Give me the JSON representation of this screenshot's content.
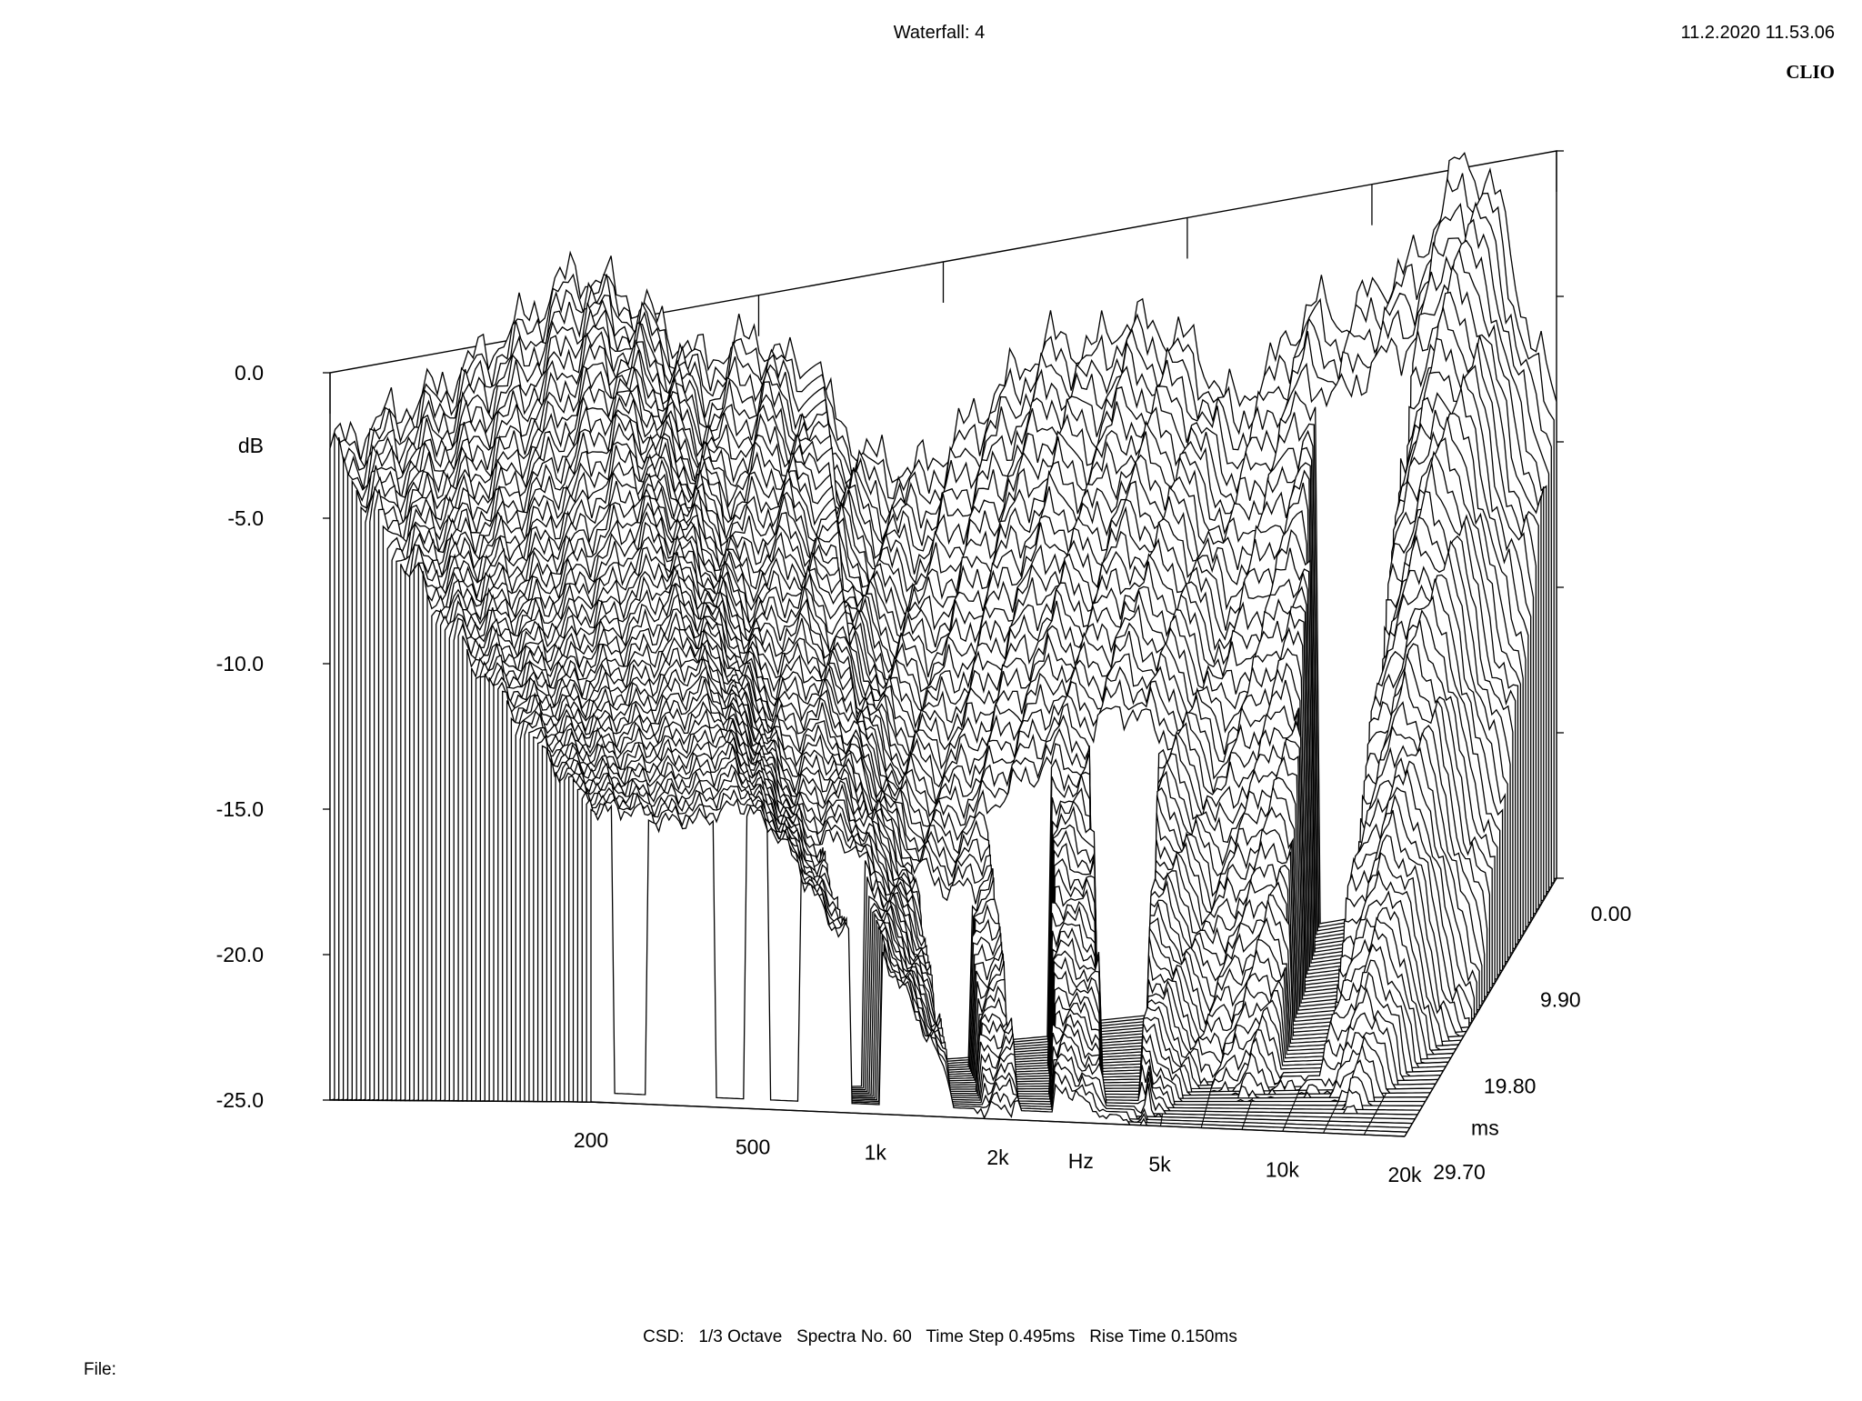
{
  "header": {
    "title": "Waterfall: 4",
    "timestamp": "11.2.2020 11.53.06",
    "brand": "CLIO"
  },
  "footer": {
    "summary": "CSD:   1/3 Octave   Spectra No. 60   Time Step 0.495ms   Rise Time 0.150ms",
    "file_label": "File:"
  },
  "chart_data": {
    "type": "waterfall",
    "xlabel": "Hz",
    "ylabel": "dB",
    "zlabel": "ms",
    "x_scale": "log",
    "x_ticks": [
      "200",
      "500",
      "1k",
      "2k",
      "5k",
      "10k",
      "20k"
    ],
    "x_tick_values": [
      200,
      500,
      1000,
      2000,
      5000,
      10000,
      20000
    ],
    "y_ticks": [
      "0.0",
      "-5.0",
      "-10.0",
      "-15.0",
      "-20.0",
      "-25.0"
    ],
    "y_tick_values": [
      0,
      -5,
      -10,
      -15,
      -20,
      -25
    ],
    "z_ticks": [
      "0.00",
      "9.90",
      "19.80",
      "29.70"
    ],
    "z_tick_values": [
      0,
      9.9,
      19.8,
      29.7
    ],
    "xlim": [
      200,
      20000
    ],
    "ylim": [
      -25,
      0
    ],
    "zlim": [
      0,
      29.7
    ],
    "spectra_count": 60,
    "time_step_ms": 0.495,
    "smoothing": "1/3 Octave",
    "rise_time_ms": 0.15,
    "first_spectrum": {
      "freq_hz": [
        200,
        300,
        400,
        500,
        600,
        700,
        800,
        1000,
        1200,
        1500,
        1800,
        2000,
        2500,
        3000,
        3500,
        4000,
        5000,
        6000,
        7000,
        8000,
        9000,
        10000,
        12000,
        14000,
        16000,
        18000,
        20000
      ],
      "db": [
        -2.6,
        -1.2,
        0.4,
        2.0,
        1.0,
        -0.5,
        -1.8,
        -1.4,
        -3.2,
        -6.2,
        -7.0,
        -6.5,
        -4.6,
        -3.3,
        -3.9,
        -3.1,
        -4.2,
        -6.8,
        -5.4,
        -3.6,
        -4.6,
        -3.7,
        -2.8,
        0.4,
        -1.1,
        -6.0,
        -8.5
      ]
    },
    "decay_features": [
      {
        "freq_hz": 250,
        "level_db": -5.5,
        "decay_ms": 29.7
      },
      {
        "freq_hz": 440,
        "level_db": -1.0,
        "decay_ms": 29.7
      },
      {
        "freq_hz": 600,
        "level_db": -5.5,
        "decay_ms": 29.7
      },
      {
        "freq_hz": 950,
        "level_db": -2.5,
        "decay_ms": 24.0
      },
      {
        "freq_hz": 1700,
        "level_db": -10.5,
        "decay_ms": 18.0
      },
      {
        "freq_hz": 2500,
        "level_db": -8.5,
        "decay_ms": 15.0
      },
      {
        "freq_hz": 4000,
        "level_db": -9.0,
        "decay_ms": 13.0
      },
      {
        "freq_hz": 10000,
        "level_db": -14.5,
        "decay_ms": 2.5
      }
    ]
  }
}
